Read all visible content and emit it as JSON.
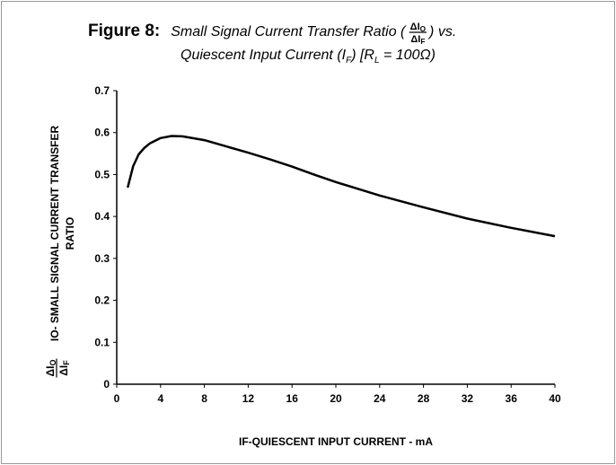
{
  "chart_data": {
    "type": "line",
    "title": {
      "label": "Figure 8:",
      "text": "Small Signal Current Transfer Ratio (",
      "fraction": {
        "numerator": "ΔI",
        "numerator_sub": "O",
        "denominator": "ΔI",
        "denominator_sub": "F"
      },
      "text_end": ") vs.",
      "line2": [
        "Quiescent Input Current (I",
        "F",
        ")  [R",
        "L",
        " = 100Ω)"
      ]
    },
    "y_label": {
      "fraction": {
        "numerator": "ΔI",
        "numerator_sub": "O",
        "denominator": "ΔI",
        "denominator_sub": "F"
      },
      "lines": [
        "IO- SMALL SIGNAL CURRENT TRANSFER",
        "RATIO"
      ]
    },
    "x_label": "IF-QUIESCENT INPUT CURRENT - mA",
    "x": [
      1,
      1.5,
      2,
      2.5,
      3,
      4,
      5,
      6,
      8,
      10,
      12,
      14,
      16,
      18,
      20,
      24,
      28,
      32,
      36,
      40
    ],
    "values": [
      0.469,
      0.52,
      0.548,
      0.563,
      0.574,
      0.587,
      0.592,
      0.591,
      0.582,
      0.567,
      0.552,
      0.536,
      0.519,
      0.5,
      0.482,
      0.45,
      0.422,
      0.395,
      0.373,
      0.353
    ],
    "color": "#000000",
    "xlim": [
      0,
      40
    ],
    "xticks": [
      0,
      4,
      8,
      12,
      16,
      20,
      24,
      28,
      32,
      36,
      40
    ],
    "ylim": [
      0,
      0.7
    ],
    "yticks": [
      0,
      0.1,
      0.2,
      0.3,
      0.4,
      0.5,
      0.6,
      0.7
    ],
    "grid": false
  }
}
